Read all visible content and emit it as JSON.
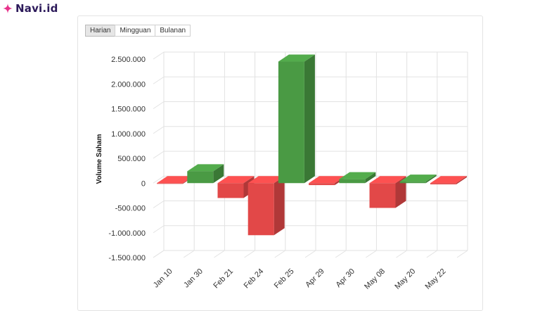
{
  "brand": {
    "name": "Navi.id",
    "logo_icon": "sparkle-icon",
    "logo_color": "#e8318b"
  },
  "tabs": [
    {
      "label": "Harian",
      "active": true
    },
    {
      "label": "Mingguan",
      "active": false
    },
    {
      "label": "Bulanan",
      "active": false
    }
  ],
  "chart_data": {
    "type": "bar",
    "title": "",
    "xlabel": "",
    "ylabel": "Volume Saham",
    "categories": [
      "Jan 10",
      "Jan 30",
      "Feb 21",
      "Feb 24",
      "Feb 25",
      "Apr 29",
      "Apr 30",
      "May 08",
      "May 20",
      "May 22"
    ],
    "values": [
      -15000,
      240000,
      -300000,
      -1050000,
      2450000,
      -40000,
      80000,
      -500000,
      30000,
      -25000
    ],
    "y_ticks": [
      {
        "value": 2500000,
        "label": "2.500.000"
      },
      {
        "value": 2000000,
        "label": "2.000.000"
      },
      {
        "value": 1500000,
        "label": "1.500.000"
      },
      {
        "value": 1000000,
        "label": "1.000.000"
      },
      {
        "value": 500000,
        "label": "500.000"
      },
      {
        "value": 0,
        "label": "0"
      },
      {
        "value": -500000,
        "label": "-500.000"
      },
      {
        "value": -1000000,
        "label": "-1.000.000"
      },
      {
        "value": -1500000,
        "label": "-1.500.000"
      }
    ],
    "ylim": [
      -1500000,
      2500000
    ],
    "grid": true,
    "colors": {
      "positive": "#4a9a44",
      "negative": "#e24848"
    }
  }
}
